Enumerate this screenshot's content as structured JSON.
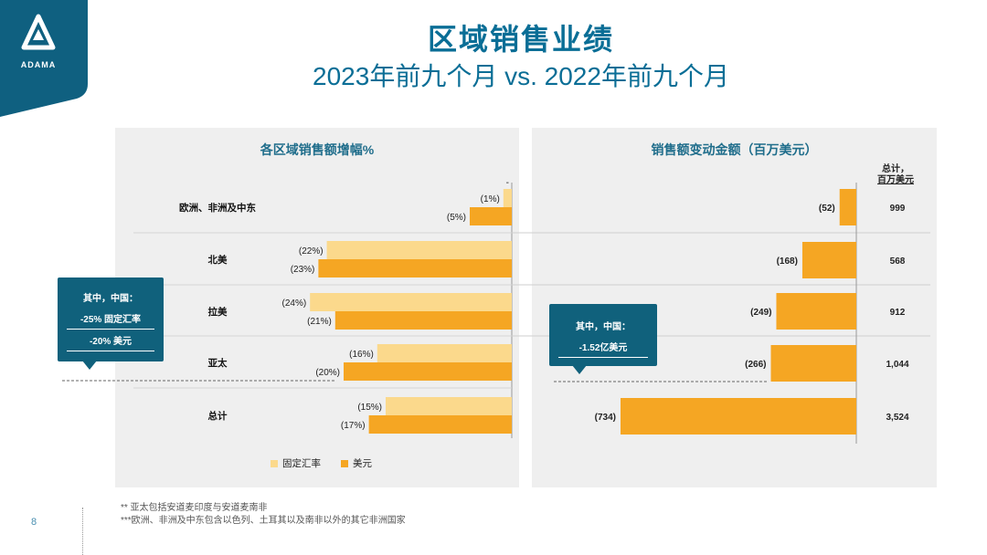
{
  "logo": {
    "text": "ADAMA",
    "bg_color": "#0f6080"
  },
  "title": {
    "main": "区域销售业绩",
    "sub": "2023年前九个月 vs. 2022年前九个月"
  },
  "colors": {
    "fixed_fx": "#fbd98c",
    "usd": "#f5a623",
    "dark_teal": "#10617c"
  },
  "left_panel": {
    "title": "各区域销售额增幅%"
  },
  "right_panel": {
    "title": "销售额变动金额（百万美元）",
    "total_header_1": "总计，",
    "total_header_2": "百万美元"
  },
  "legend": {
    "fixed_fx": "固定汇率",
    "usd": "美元"
  },
  "callout_left": {
    "title": "其中，中国：",
    "line1": "-25%  固定汇率",
    "line2": "-20%  美元"
  },
  "callout_right": {
    "title": "其中，中国：",
    "line1": "-1.52亿美元"
  },
  "footnotes": {
    "note1": "** 亚太包括安道麦印度与安道麦南非",
    "note2": "***欧洲、非洲及中东包含以色列、土耳其以及南非以外的其它非洲国家"
  },
  "page_number": "8",
  "chart_data": [
    {
      "type": "bar",
      "title": "各区域销售额增幅%",
      "categories": [
        "欧洲、非洲及中东",
        "北美",
        "拉美",
        "亚太",
        "总计"
      ],
      "series": [
        {
          "name": "固定汇率",
          "values": [
            -1,
            -22,
            -24,
            -16,
            -15
          ],
          "labels": [
            "(1%)",
            "(22%)",
            "(24%)",
            "(16%)",
            "(15%)"
          ]
        },
        {
          "name": "美元",
          "values": [
            -5,
            -23,
            -21,
            -20,
            -17
          ],
          "labels": [
            "(5%)",
            "(23%)",
            "(21%)",
            "(20%)",
            "(17%)"
          ]
        }
      ],
      "xlim": [
        -25,
        0
      ]
    },
    {
      "type": "bar",
      "title": "销售额变动金额（百万美元）",
      "categories": [
        "欧洲、非洲及中东",
        "北美",
        "拉美",
        "亚太",
        "总计"
      ],
      "series": [
        {
          "values": [
            -52,
            -168,
            -249,
            -266,
            -734
          ],
          "labels": [
            "(52)",
            "(168)",
            "(249)",
            "(266)",
            "(734)"
          ]
        }
      ],
      "totals": [
        "999",
        "568",
        "912",
        "1,044",
        "3,524"
      ],
      "xlim": [
        -734,
        0
      ]
    }
  ]
}
